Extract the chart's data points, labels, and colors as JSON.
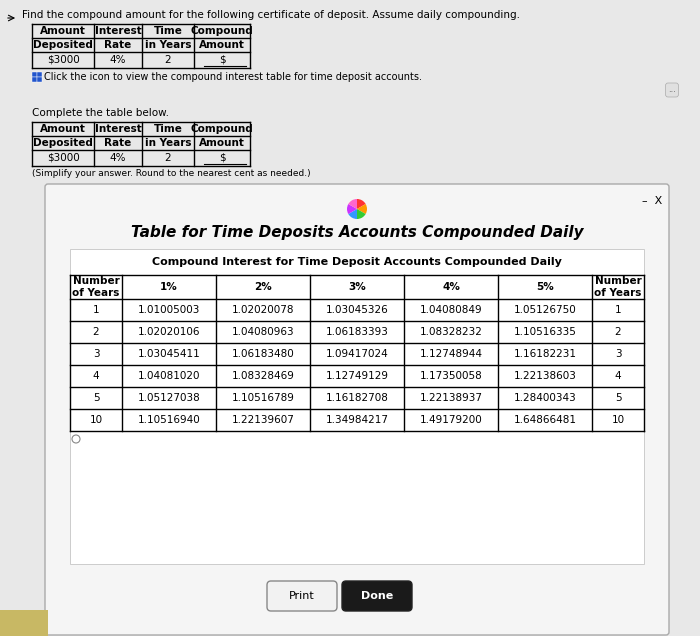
{
  "title_text": "Find the compound amount for the following certificate of deposit. Assume daily compounding.",
  "top_table_headers_row1": [
    "Amount",
    "Interest",
    "Time",
    "Compound"
  ],
  "top_table_headers_row2": [
    "Deposited",
    "Rate",
    "in Years",
    "Amount"
  ],
  "top_table_row": [
    "$3000",
    "4%",
    "2",
    "$"
  ],
  "click_text": "Click the icon to view the compound interest table for time deposit accounts.",
  "complete_text": "Complete the table below.",
  "bottom_table_headers_row1": [
    "Amount",
    "Interest",
    "Time",
    "Compound"
  ],
  "bottom_table_headers_row2": [
    "Deposited",
    "Rate",
    "in Years",
    "Amount"
  ],
  "bottom_table_row": [
    "$3000",
    "4%",
    "2",
    "$"
  ],
  "simplify_text": "(Simplify your answer. Round to the nearest cent as needed.)",
  "dialog_title": "Table for Time Deposits Accounts Compounded Daily",
  "dialog_subtitle": "Compound Interest for Time Deposit Accounts Compounded Daily",
  "compound_headers_row1": [
    "Number",
    "1%",
    "2%",
    "3%",
    "4%",
    "5%",
    "Number"
  ],
  "compound_headers_row2": [
    "of Years",
    "",
    "",
    "",
    "",
    "",
    "of Years"
  ],
  "compound_rows": [
    [
      "1",
      "1.01005003",
      "1.02020078",
      "1.03045326",
      "1.04080849",
      "1.05126750",
      "1"
    ],
    [
      "2",
      "1.02020106",
      "1.04080963",
      "1.06183393",
      "1.08328232",
      "1.10516335",
      "2"
    ],
    [
      "3",
      "1.03045411",
      "1.06183480",
      "1.09417024",
      "1.12748944",
      "1.16182231",
      "3"
    ],
    [
      "4",
      "1.04081020",
      "1.08328469",
      "1.12749129",
      "1.17350058",
      "1.22138603",
      "4"
    ],
    [
      "5",
      "1.05127038",
      "1.10516789",
      "1.16182708",
      "1.22138937",
      "1.28400343",
      "5"
    ],
    [
      "10",
      "1.10516940",
      "1.22139607",
      "1.34984217",
      "1.49179200",
      "1.64866481",
      "10"
    ]
  ],
  "bg_color": "#e8e8e8",
  "dialog_bg": "#ffffff",
  "print_btn": "Print",
  "done_btn": "Done",
  "done_btn_bg": "#1a1a1a",
  "done_btn_fg": "#ffffff"
}
